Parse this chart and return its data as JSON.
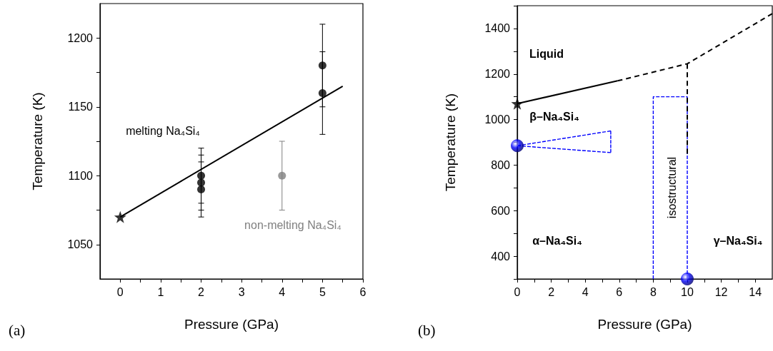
{
  "chart_data": [
    {
      "type": "scatter",
      "xlabel": "Pressure (GPa)",
      "ylabel": "Temperature (K)",
      "xlim": [
        -0.5,
        6
      ],
      "xticks": [
        0,
        1,
        2,
        3,
        4,
        5,
        6,
        {
          "value": 0.5,
          "label": null
        },
        {
          "value": 1.5,
          "label": null
        },
        {
          "value": 2.5,
          "label": null
        },
        {
          "value": 3.5,
          "label": null
        },
        {
          "value": 4.5,
          "label": null
        },
        {
          "value": 5.5,
          "label": null
        }
      ],
      "ylim": [
        1025,
        1225
      ],
      "yticks": [
        1050,
        1100,
        1150,
        1200,
        {
          "value": 1075,
          "label": null
        },
        {
          "value": 1125,
          "label": null
        },
        {
          "value": 1175,
          "label": null
        }
      ],
      "series": [
        {
          "color": "#000000",
          "marker": "circle",
          "x": [
            2,
            2,
            2,
            5,
            5
          ],
          "values": [
            1100,
            1095,
            1090,
            1180,
            1160
          ],
          "errors": [
            20,
            20,
            20,
            30,
            30
          ]
        },
        {
          "color": "#808080",
          "marker": "circle",
          "x": [
            4
          ],
          "values": [
            1100
          ],
          "errors": [
            25
          ]
        },
        {
          "color": "#000000",
          "marker": "star",
          "x": [
            0
          ],
          "values": [
            1070
          ]
        },
        {
          "type": "line",
          "color": "#000000",
          "marker": "none",
          "line_style": "solid",
          "x": [
            0,
            5.5
          ],
          "values": [
            1070,
            1165
          ]
        }
      ],
      "annotations": [
        "melting Na₄Si₄",
        "non-melting Na₄Si₄",
        "(a)"
      ]
    },
    {
      "type": "line",
      "xlabel": "Pressure (GPa)",
      "ylabel": "Temperature (K)",
      "xlim": [
        0,
        15
      ],
      "xticks": [
        0,
        2,
        4,
        6,
        8,
        10,
        12,
        14,
        {
          "value": 1,
          "label": null
        },
        {
          "value": 3,
          "label": null
        },
        {
          "value": 5,
          "label": null
        },
        {
          "value": 7,
          "label": null
        },
        {
          "value": 9,
          "label": null
        },
        {
          "value": 11,
          "label": null
        },
        {
          "value": 13,
          "label": null
        }
      ],
      "ylim": [
        300,
        1500
      ],
      "yticks": [
        400,
        600,
        800,
        1000,
        1200,
        1400,
        {
          "value": 300,
          "label": null
        },
        {
          "value": 500,
          "label": null
        },
        {
          "value": 700,
          "label": null
        },
        {
          "value": 900,
          "label": null
        },
        {
          "value": 1100,
          "label": null
        },
        {
          "value": 1300,
          "label": null
        },
        {
          "value": 1500,
          "label": null
        }
      ],
      "series": [
        {
          "color": "#000000",
          "marker": "none",
          "line_style": "solid",
          "x": [
            0,
            5.9
          ],
          "values": [
            1070,
            1170
          ]
        },
        {
          "color": "#000000",
          "marker": "none",
          "line_style": "dashed",
          "x": [
            5.9,
            10,
            15
          ],
          "values": [
            1170,
            1245,
            1465
          ]
        },
        {
          "color": "#000000",
          "marker": "none",
          "line_style": "dashed",
          "x": [
            10,
            10
          ],
          "values": [
            1245,
            850
          ]
        },
        {
          "color": "#0000ff",
          "marker": "none",
          "line_style": "dashed",
          "x": [
            0,
            5.5
          ],
          "values": [
            885,
            950
          ]
        },
        {
          "color": "#0000ff",
          "marker": "none",
          "line_style": "dashed",
          "x": [
            0,
            5.5
          ],
          "values": [
            885,
            855
          ]
        },
        {
          "color": "#0000ff",
          "marker": "none",
          "line_style": "dashed",
          "x": [
            5.5,
            5.5
          ],
          "values": [
            855,
            950
          ]
        },
        {
          "color": "#0000ff",
          "marker": "none",
          "line_style": "dashed",
          "x": [
            8,
            8,
            10,
            10
          ],
          "values": [
            300,
            1100,
            1100,
            300
          ]
        },
        {
          "type": "scatter",
          "color": "#000000",
          "marker": "star",
          "x": [
            0
          ],
          "values": [
            1070
          ]
        },
        {
          "type": "scatter",
          "color": "#0000ff",
          "marker": "circle",
          "x": [
            0,
            10
          ],
          "values": [
            885,
            300
          ]
        }
      ],
      "annotations": [
        "Liquid",
        "β–Na₄Si₄",
        "α–Na₄Si₄",
        "γ–Na₄Si₄",
        "isostructural",
        "(b)"
      ]
    }
  ]
}
